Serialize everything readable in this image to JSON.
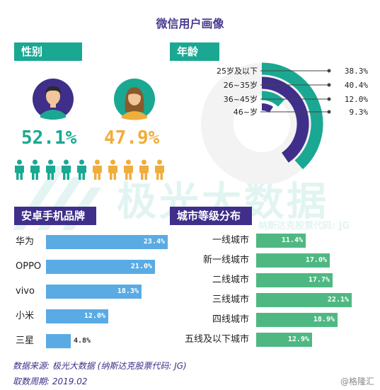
{
  "title": "微信用户画像",
  "gender": {
    "label": "性别",
    "male_pct": "52.1%",
    "female_pct": "47.9%",
    "male_color": "#1aa892",
    "female_color": "#f0ad3c",
    "male_icons": 5,
    "female_icons": 5
  },
  "age": {
    "label": "年龄",
    "items": [
      {
        "label": "25岁及以下",
        "value": "38.3%"
      },
      {
        "label": "26~35岁",
        "value": "40.4%"
      },
      {
        "label": "36~45岁",
        "value": "12.0%"
      },
      {
        "label": "46~岁",
        "value": "9.3%"
      }
    ]
  },
  "phone": {
    "label": "安卓手机品牌",
    "color": "#5aabe4"
  },
  "city": {
    "label": "城市等级分布",
    "color": "#4fb882"
  },
  "watermark": {
    "main": "极光大数据",
    "sub": "纳斯达克股票代码: JG"
  },
  "footer": {
    "source": "数据来源: 极光大数据 (纳斯达克股票代码: JG)",
    "period": "取数周期: 2019.02",
    "brand": "@格隆汇"
  },
  "chart_data": [
    {
      "type": "pie",
      "title": "性别",
      "categories": [
        "男",
        "女"
      ],
      "values": [
        52.1,
        47.9
      ]
    },
    {
      "type": "bar",
      "title": "年龄",
      "categories": [
        "25岁及以下",
        "26~35岁",
        "36~45岁",
        "46~岁"
      ],
      "values": [
        38.3,
        40.4,
        12.0,
        9.3
      ],
      "unit": "%"
    },
    {
      "type": "bar",
      "title": "安卓手机品牌",
      "categories": [
        "华为",
        "OPPO",
        "vivo",
        "小米",
        "三星"
      ],
      "values": [
        23.4,
        21.0,
        18.3,
        12.0,
        4.8
      ],
      "labels": [
        "23.4%",
        "21.0%",
        "18.3%",
        "12.0%",
        "4.8%"
      ],
      "unit": "%"
    },
    {
      "type": "bar",
      "title": "城市等级分布",
      "categories": [
        "一线城市",
        "新一线城市",
        "二线城市",
        "三线城市",
        "四线城市",
        "五线及以下城市"
      ],
      "values": [
        11.4,
        17.0,
        17.7,
        22.1,
        18.9,
        12.9
      ],
      "labels": [
        "11.4%",
        "17.0%",
        "17.7%",
        "22.1%",
        "18.9%",
        "12.9%"
      ],
      "unit": "%"
    }
  ]
}
